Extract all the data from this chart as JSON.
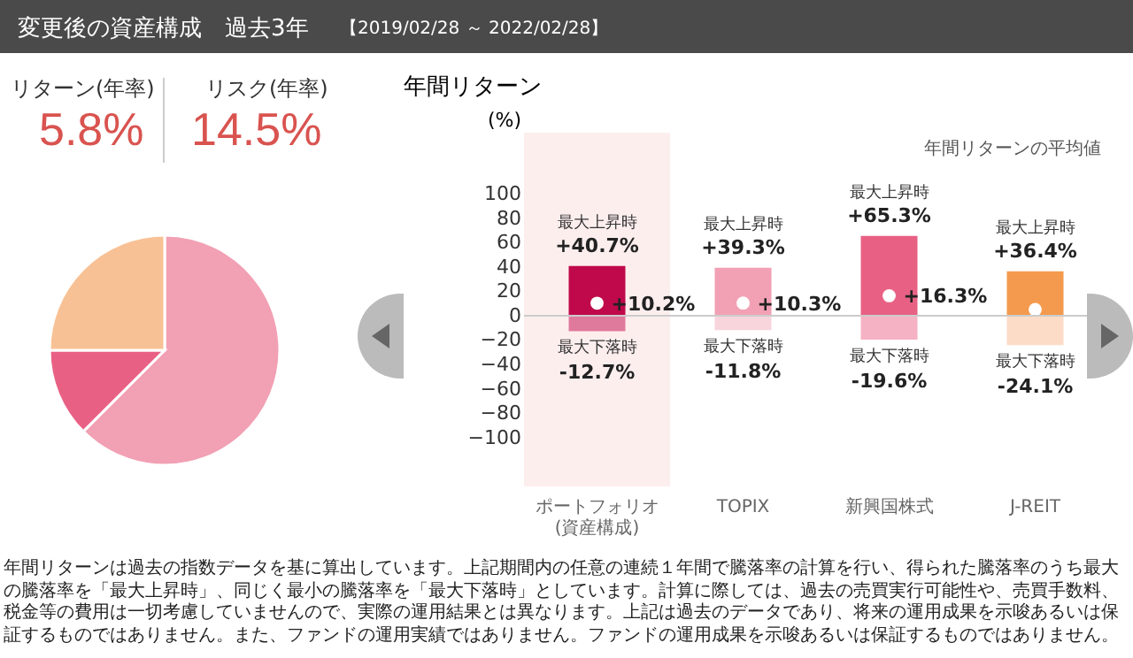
{
  "chart_data": [
    {
      "type": "other",
      "title": "変更後の資産構成　過去3年",
      "subtitle": "【2019/02/28 ～ 2022/02/28】",
      "annotations": [
        "リターン(年率)",
        "5.8%",
        "リスク(年率)",
        "14.5%"
      ]
    },
    {
      "type": "pie",
      "categories": [
        null,
        null,
        null
      ],
      "values": [
        62.5,
        12.5,
        25
      ],
      "colors": [
        "#f2a0b4",
        "#e86184",
        "#f8c195"
      ]
    },
    {
      "type": "bar",
      "title": "年間リターン",
      "ylabel": "(%)",
      "categories": [
        "ポートフォリオ\n(資産構成)",
        "TOPIX",
        "新興国株式",
        "J-REIT"
      ],
      "ylim": [
        -140,
        150
      ],
      "yticks": [
        -100,
        -80,
        -60,
        -40,
        -20,
        0,
        20,
        40,
        60,
        80,
        100
      ],
      "legend": "top right",
      "stacked": true,
      "series": [
        {
          "type": "bar",
          "colors": [
            "#c0094a",
            "#f2a0b4",
            "#e86184",
            "#f49a4e"
          ],
          "values": [
            40.7,
            39.3,
            65.3,
            36.4
          ],
          "value_labels": [
            "+40.7%",
            "+39.3%",
            "+65.3%",
            "+36.4%"
          ]
        },
        {
          "type": "bar",
          "colors": [
            "#e07a9c",
            "#f8d4dd",
            "#f5b2c4",
            "#fcdcc6"
          ],
          "values": [
            -12.7,
            -11.8,
            -19.6,
            -24.1
          ],
          "value_labels": [
            "-12.7%",
            "-11.8%",
            "-19.6%",
            "-24.1%"
          ]
        },
        {
          "type": "scatter",
          "name": "年間リターンの平均値",
          "color": "#ffffff",
          "marker": "circle",
          "values": [
            10.2,
            10.3,
            16.3,
            5
          ],
          "value_labels": [
            "+10.2%",
            "+10.3%",
            "+16.3%",
            null
          ]
        }
      ],
      "ref_lines": [
        {
          "axis": "y",
          "value": 0,
          "color": "#cccccc"
        }
      ],
      "bands": [
        {
          "axis": "x",
          "from": "ポートフォリオ\n(資産構成)",
          "to": "ポートフォリオ\n(資産構成)",
          "color": "#fdeeee"
        }
      ],
      "annotations": [
        {
          "text": "最大上昇時",
          "x": "ポートフォリオ\n(資産構成)",
          "y": 40.7
        },
        {
          "text": "最大上昇時",
          "x": "TOPIX",
          "y": 39.3
        },
        {
          "text": "最大上昇時",
          "x": "新興国株式",
          "y": 65.3
        },
        {
          "text": "最大上昇時",
          "x": "J-REIT",
          "y": 36.4
        },
        {
          "text": "最大下落時",
          "x": "ポートフォリオ\n(資産構成)",
          "y": -12.7
        },
        {
          "text": "最大下落時",
          "x": "TOPIX",
          "y": -11.8
        },
        {
          "text": "最大下落時",
          "x": "新興国株式",
          "y": -19.6
        },
        {
          "text": "最大下落時",
          "x": "J-REIT",
          "y": -24.1
        },
        "年間リターンは過去の指数データを基に算出しています。上記期間内の任意の連続１年間で騰落率の計算を行い、得られた騰落率のうち最大の騰落率を「最大上昇時」、同じく最小の騰落率を「最大下落時」としています。計算に際しては、過去の売買実行可能性や、売買手数料、税金等の費用は一切考慮していませんので、実際の運用結果とは異なります。上記は過去のデータであり、将来の運用成果を示唆あるいは保証するものではありません。また、ファンドの運用実績ではありません。ファンドの運用成果を示唆あるいは保証するものではありません。"
      ]
    }
  ]
}
